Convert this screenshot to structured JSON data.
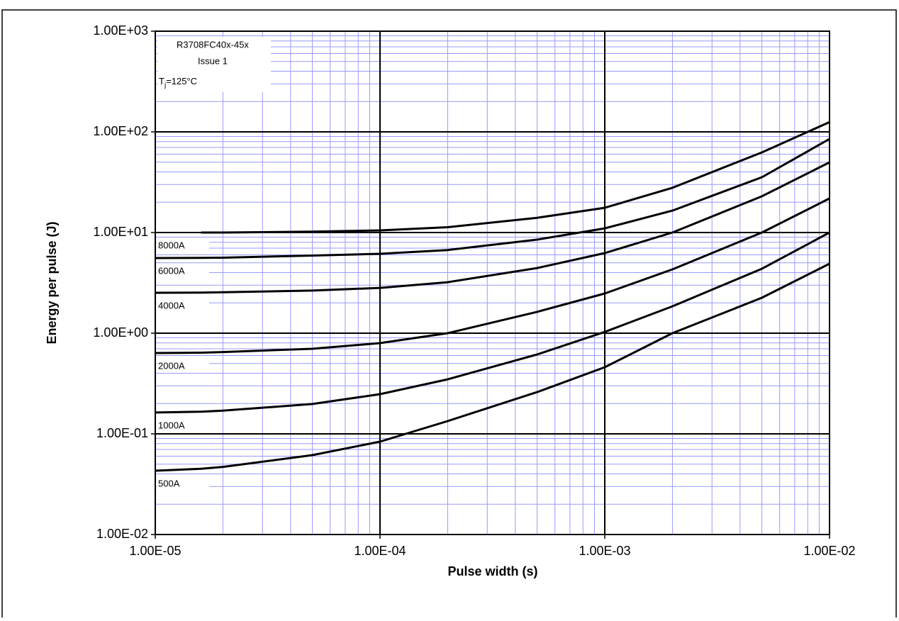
{
  "chart_data": {
    "type": "line",
    "x_label": "Pulse width (s)",
    "y_label": "Energy per pulse (J)",
    "x_log": true,
    "y_log": true,
    "grid": true,
    "minor_grid": true,
    "major_grid_color": "#000000",
    "minor_grid_color": "#9999ff",
    "note": [
      "R3708FC40x-45x",
      "Issue 1"
    ],
    "temperature": {
      "symbol": "T",
      "subscript": "j",
      "text": "=125°C"
    },
    "xlim": [
      1e-05,
      0.01
    ],
    "ylim": [
      0.01,
      1000
    ],
    "xticks": [
      {
        "value": 1e-05,
        "label": "1.00E-05"
      },
      {
        "value": 0.0001,
        "label": "1.00E-04"
      },
      {
        "value": 0.001,
        "label": "1.00E-03"
      },
      {
        "value": 0.01,
        "label": "1.00E-02"
      }
    ],
    "yticks": [
      {
        "value": 0.01,
        "label": "1.00E-02"
      },
      {
        "value": 0.1,
        "label": "1.00E-01"
      },
      {
        "value": 1,
        "label": "1.00E+00"
      },
      {
        "value": 10,
        "label": "1.00E+01"
      },
      {
        "value": 100,
        "label": "1.00E+02"
      },
      {
        "value": 1000,
        "label": "1.00E+03"
      }
    ],
    "x": [
      1e-05,
      1.6e-05,
      2e-05,
      5e-05,
      0.0001,
      0.0002,
      0.0005,
      0.001,
      0.002,
      0.005,
      0.01
    ],
    "series": [
      {
        "name": "8000A",
        "color": "#000000",
        "values": [
          null,
          10.0,
          10.0,
          10.2,
          10.5,
          11.3,
          14,
          17.6,
          27.8,
          62.5,
          125
        ]
      },
      {
        "name": "6000A",
        "color": "#000000",
        "values": [
          5.58,
          5.6,
          5.62,
          5.9,
          6.15,
          6.7,
          8.5,
          11.0,
          16.5,
          35.4,
          85
        ]
      },
      {
        "name": "4000A",
        "color": "#000000",
        "values": [
          2.52,
          2.53,
          2.55,
          2.65,
          2.82,
          3.21,
          4.44,
          6.25,
          10,
          22.9,
          49.8
        ]
      },
      {
        "name": "2000A",
        "color": "#000000",
        "values": [
          0.635,
          0.64,
          0.65,
          0.7,
          0.797,
          1.0,
          1.63,
          2.48,
          4.3,
          10,
          21.8
        ]
      },
      {
        "name": "1000A",
        "color": "#000000",
        "values": [
          0.163,
          0.166,
          0.17,
          0.198,
          0.248,
          0.348,
          0.615,
          1.03,
          1.85,
          4.37,
          10
        ]
      },
      {
        "name": "500A",
        "color": "#000000",
        "values": [
          0.043,
          0.045,
          0.047,
          0.0615,
          0.0837,
          0.134,
          0.26,
          0.459,
          1.0,
          2.25,
          4.9
        ]
      }
    ]
  }
}
